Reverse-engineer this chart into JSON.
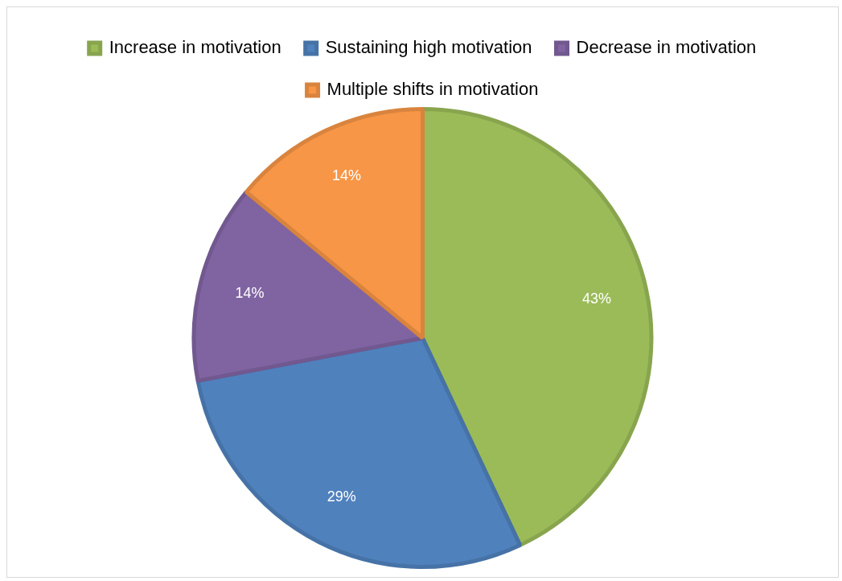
{
  "chart_data": {
    "type": "pie",
    "categories": [
      "Increase in motivation",
      "Sustaining high motivation",
      "Decrease in motivation",
      "Multiple shifts in motivation"
    ],
    "values": [
      43,
      29,
      14,
      14
    ],
    "colors": [
      "#9bbb59",
      "#4f81bd",
      "#8064a2",
      "#f79646"
    ],
    "value_labels": [
      "43%",
      "29%",
      "14%",
      "14%"
    ],
    "legend": "top"
  }
}
